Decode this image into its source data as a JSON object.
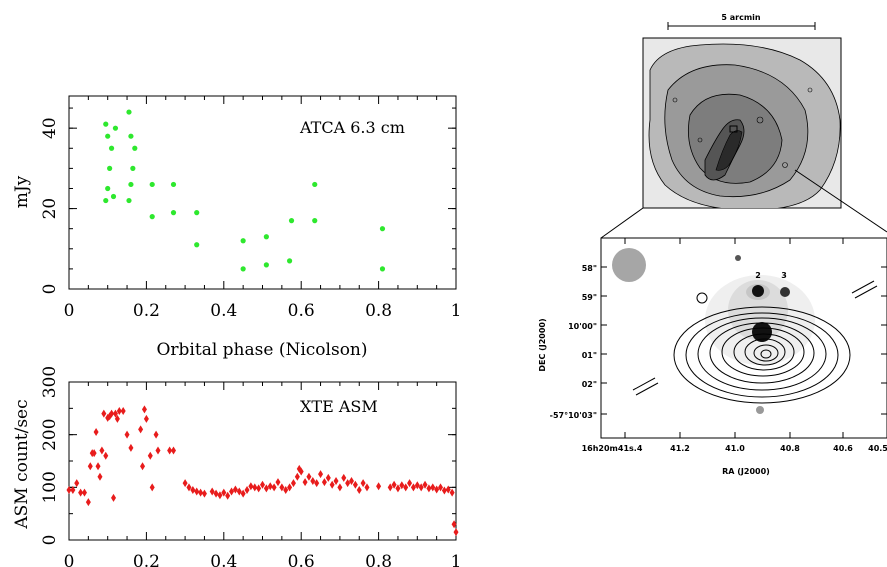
{
  "chart_data": [
    {
      "type": "scatter",
      "title": "ATCA 6.3 cm",
      "xlabel": "Orbital phase (Nicolson)",
      "ylabel": "mJy",
      "xlim": [
        0,
        1
      ],
      "ylim": [
        0,
        48
      ],
      "xticks": [
        "0",
        "0.2",
        "0.4",
        "0.6",
        "0.8",
        "1"
      ],
      "yticks": [
        "0",
        "20",
        "40"
      ],
      "color": "#2ee82e",
      "series": [
        {
          "points": [
            [
              0.095,
              22
            ],
            [
              0.095,
              41
            ],
            [
              0.1,
              25
            ],
            [
              0.1,
              38
            ],
            [
              0.105,
              30
            ],
            [
              0.11,
              35
            ],
            [
              0.115,
              23
            ],
            [
              0.12,
              40
            ],
            [
              0.155,
              22
            ],
            [
              0.155,
              44
            ],
            [
              0.16,
              26
            ],
            [
              0.16,
              38
            ],
            [
              0.165,
              30
            ],
            [
              0.17,
              35
            ],
            [
              0.215,
              18
            ],
            [
              0.215,
              26
            ],
            [
              0.27,
              19
            ],
            [
              0.27,
              26
            ],
            [
              0.33,
              11
            ],
            [
              0.33,
              19
            ],
            [
              0.45,
              5
            ],
            [
              0.45,
              12
            ],
            [
              0.51,
              6
            ],
            [
              0.51,
              13
            ],
            [
              0.57,
              7
            ],
            [
              0.575,
              17
            ],
            [
              0.635,
              17
            ],
            [
              0.635,
              26
            ],
            [
              0.81,
              5
            ],
            [
              0.81,
              15
            ]
          ]
        }
      ]
    },
    {
      "type": "scatter",
      "title": "XTE ASM",
      "xlabel": "",
      "ylabel": "ASM count/sec",
      "xlim": [
        0,
        1
      ],
      "ylim": [
        0,
        300
      ],
      "xticks": [
        "0",
        "0.2",
        "0.4",
        "0.6",
        "0.8",
        "1"
      ],
      "yticks": [
        "0",
        "100",
        "200",
        "300"
      ],
      "color": "#e81c1c",
      "series": [
        {
          "points": [
            [
              0.0,
              95
            ],
            [
              0.01,
              95
            ],
            [
              0.02,
              108
            ],
            [
              0.03,
              90
            ],
            [
              0.04,
              90
            ],
            [
              0.05,
              72
            ],
            [
              0.055,
              140
            ],
            [
              0.06,
              165
            ],
            [
              0.065,
              165
            ],
            [
              0.07,
              205
            ],
            [
              0.075,
              140
            ],
            [
              0.08,
              120
            ],
            [
              0.085,
              170
            ],
            [
              0.09,
              240
            ],
            [
              0.095,
              160
            ],
            [
              0.1,
              232
            ],
            [
              0.105,
              235
            ],
            [
              0.11,
              240
            ],
            [
              0.115,
              80
            ],
            [
              0.12,
              240
            ],
            [
              0.125,
              230
            ],
            [
              0.13,
              245
            ],
            [
              0.14,
              245
            ],
            [
              0.15,
              200
            ],
            [
              0.16,
              175
            ],
            [
              0.185,
              210
            ],
            [
              0.19,
              140
            ],
            [
              0.195,
              248
            ],
            [
              0.2,
              230
            ],
            [
              0.21,
              160
            ],
            [
              0.215,
              100
            ],
            [
              0.225,
              200
            ],
            [
              0.23,
              170
            ],
            [
              0.26,
              170
            ],
            [
              0.27,
              170
            ],
            [
              0.3,
              108
            ],
            [
              0.31,
              100
            ],
            [
              0.32,
              95
            ],
            [
              0.33,
              92
            ],
            [
              0.34,
              90
            ],
            [
              0.35,
              88
            ],
            [
              0.37,
              92
            ],
            [
              0.38,
              88
            ],
            [
              0.39,
              85
            ],
            [
              0.4,
              90
            ],
            [
              0.41,
              84
            ],
            [
              0.42,
              92
            ],
            [
              0.43,
              96
            ],
            [
              0.44,
              92
            ],
            [
              0.45,
              88
            ],
            [
              0.46,
              95
            ],
            [
              0.47,
              102
            ],
            [
              0.48,
              100
            ],
            [
              0.49,
              98
            ],
            [
              0.5,
              105
            ],
            [
              0.51,
              98
            ],
            [
              0.52,
              102
            ],
            [
              0.53,
              100
            ],
            [
              0.54,
              110
            ],
            [
              0.55,
              100
            ],
            [
              0.56,
              95
            ],
            [
              0.57,
              100
            ],
            [
              0.58,
              108
            ],
            [
              0.59,
              120
            ],
            [
              0.595,
              135
            ],
            [
              0.6,
              130
            ],
            [
              0.61,
              110
            ],
            [
              0.62,
              120
            ],
            [
              0.63,
              112
            ],
            [
              0.64,
              108
            ],
            [
              0.65,
              125
            ],
            [
              0.66,
              110
            ],
            [
              0.67,
              118
            ],
            [
              0.68,
              105
            ],
            [
              0.69,
              112
            ],
            [
              0.7,
              100
            ],
            [
              0.71,
              118
            ],
            [
              0.72,
              108
            ],
            [
              0.73,
              112
            ],
            [
              0.74,
              105
            ],
            [
              0.75,
              95
            ],
            [
              0.76,
              108
            ],
            [
              0.77,
              100
            ],
            [
              0.8,
              102
            ],
            [
              0.83,
              100
            ],
            [
              0.84,
              105
            ],
            [
              0.85,
              98
            ],
            [
              0.86,
              104
            ],
            [
              0.87,
              100
            ],
            [
              0.88,
              108
            ],
            [
              0.89,
              100
            ],
            [
              0.9,
              104
            ],
            [
              0.91,
              100
            ],
            [
              0.92,
              105
            ],
            [
              0.93,
              98
            ],
            [
              0.94,
              100
            ],
            [
              0.95,
              96
            ],
            [
              0.96,
              100
            ],
            [
              0.97,
              94
            ],
            [
              0.98,
              96
            ],
            [
              0.99,
              90
            ],
            [
              0.995,
              30
            ],
            [
              1.0,
              15
            ]
          ]
        }
      ]
    },
    {
      "type": "image",
      "top_scalebar": "5 arcmin",
      "source_labels": [
        "2",
        "3"
      ],
      "ylabel": "DEC (J2000)",
      "xlabel": "RA (J2000)",
      "dec_ticks": [
        "58\"",
        "59\"",
        "10'00\"",
        "01\"",
        "02\"",
        "-57°10'03\""
      ],
      "ra_ticks": [
        "16h20m41s.4",
        "41.2",
        "41.0",
        "40.8",
        "40.6",
        "40.5"
      ]
    }
  ]
}
